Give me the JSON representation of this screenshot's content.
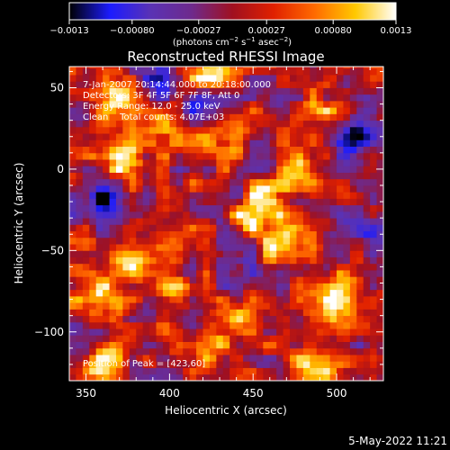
{
  "chart_data": {
    "type": "heatmap",
    "title": "Reconstructed RHESSI Image",
    "xlabel": "Heliocentric X (arcsec)",
    "ylabel": "Heliocentric Y (arcsec)",
    "xlim": [
      340,
      528
    ],
    "ylim": [
      -130,
      63
    ],
    "xticks": [
      350,
      400,
      450,
      500
    ],
    "yticks": [
      50,
      0,
      -50,
      -100
    ],
    "xtick_labels": [
      "350",
      "400",
      "450",
      "500"
    ],
    "ytick_labels": [
      "50",
      "0",
      "−50",
      "−100"
    ],
    "colorbar": {
      "min": -0.0013,
      "max": 0.0013,
      "ticks": [
        -0.0013,
        -0.0008,
        -0.00027,
        0.00027,
        0.0008,
        0.0013
      ],
      "tick_labels": [
        "−0.0013",
        "−0.00080",
        "−0.00027",
        "0.00027",
        "0.00080",
        "0.0013"
      ],
      "unit_label": "(photons cm",
      "unit_sup1": "−2",
      "unit_mid": " s",
      "unit_sup2": "−1",
      "unit_mid2": " asec",
      "unit_sup3": "−2",
      "unit_end": ")",
      "stops": [
        "#000000",
        "#1c1cff",
        "#5a32b4",
        "#6e2a8c",
        "#a01020",
        "#e02000",
        "#ff6a00",
        "#ffc800",
        "#ffffff"
      ]
    },
    "annotations": {
      "line1": "7-Jan-2007 20:14:44.000 to 20:18:00.000",
      "line2": "Detectors: 3F 4F 5F 6F 7F 8F, Att 0",
      "line3": "Energy Range: 12.0 - 25.0 keV",
      "line4": "Clean    Total counts: 4.07E+03",
      "peak": "Position of Peak = [423,60]"
    },
    "peak_position": [
      423,
      60
    ],
    "hot_regions": [
      {
        "x": 370,
        "y": 45,
        "value": 0.0012
      },
      {
        "x": 372,
        "y": 5,
        "value": 0.0009
      },
      {
        "x": 400,
        "y": 20,
        "value": 0.0008
      },
      {
        "x": 423,
        "y": 60,
        "value": 0.0013
      },
      {
        "x": 460,
        "y": -20,
        "value": 0.0011
      },
      {
        "x": 470,
        "y": -45,
        "value": 0.0012
      },
      {
        "x": 448,
        "y": -30,
        "value": 0.0009
      },
      {
        "x": 480,
        "y": 0,
        "value": 0.0007
      },
      {
        "x": 500,
        "y": -75,
        "value": 0.001
      },
      {
        "x": 505,
        "y": -85,
        "value": 0.0009
      },
      {
        "x": 355,
        "y": -80,
        "value": 0.0011
      },
      {
        "x": 400,
        "y": -75,
        "value": 0.0009
      },
      {
        "x": 375,
        "y": -60,
        "value": 0.0008
      },
      {
        "x": 440,
        "y": -95,
        "value": 0.0007
      },
      {
        "x": 485,
        "y": -120,
        "value": 0.0011
      },
      {
        "x": 360,
        "y": -120,
        "value": 0.001
      },
      {
        "x": 420,
        "y": -110,
        "value": 0.0008
      },
      {
        "x": 430,
        "y": 20,
        "value": 0.0007
      },
      {
        "x": 500,
        "y": 35,
        "value": 0.0006
      }
    ],
    "cold_regions": [
      {
        "x": 360,
        "y": -20,
        "value": -0.0011
      },
      {
        "x": 420,
        "y": 40,
        "value": -0.0009
      },
      {
        "x": 510,
        "y": 20,
        "value": -0.001
      },
      {
        "x": 395,
        "y": 50,
        "value": -0.0007
      },
      {
        "x": 440,
        "y": -60,
        "value": -0.0006
      },
      {
        "x": 520,
        "y": -40,
        "value": -0.0008
      }
    ]
  },
  "footer": {
    "timestamp": "5-May-2022 11:21"
  }
}
